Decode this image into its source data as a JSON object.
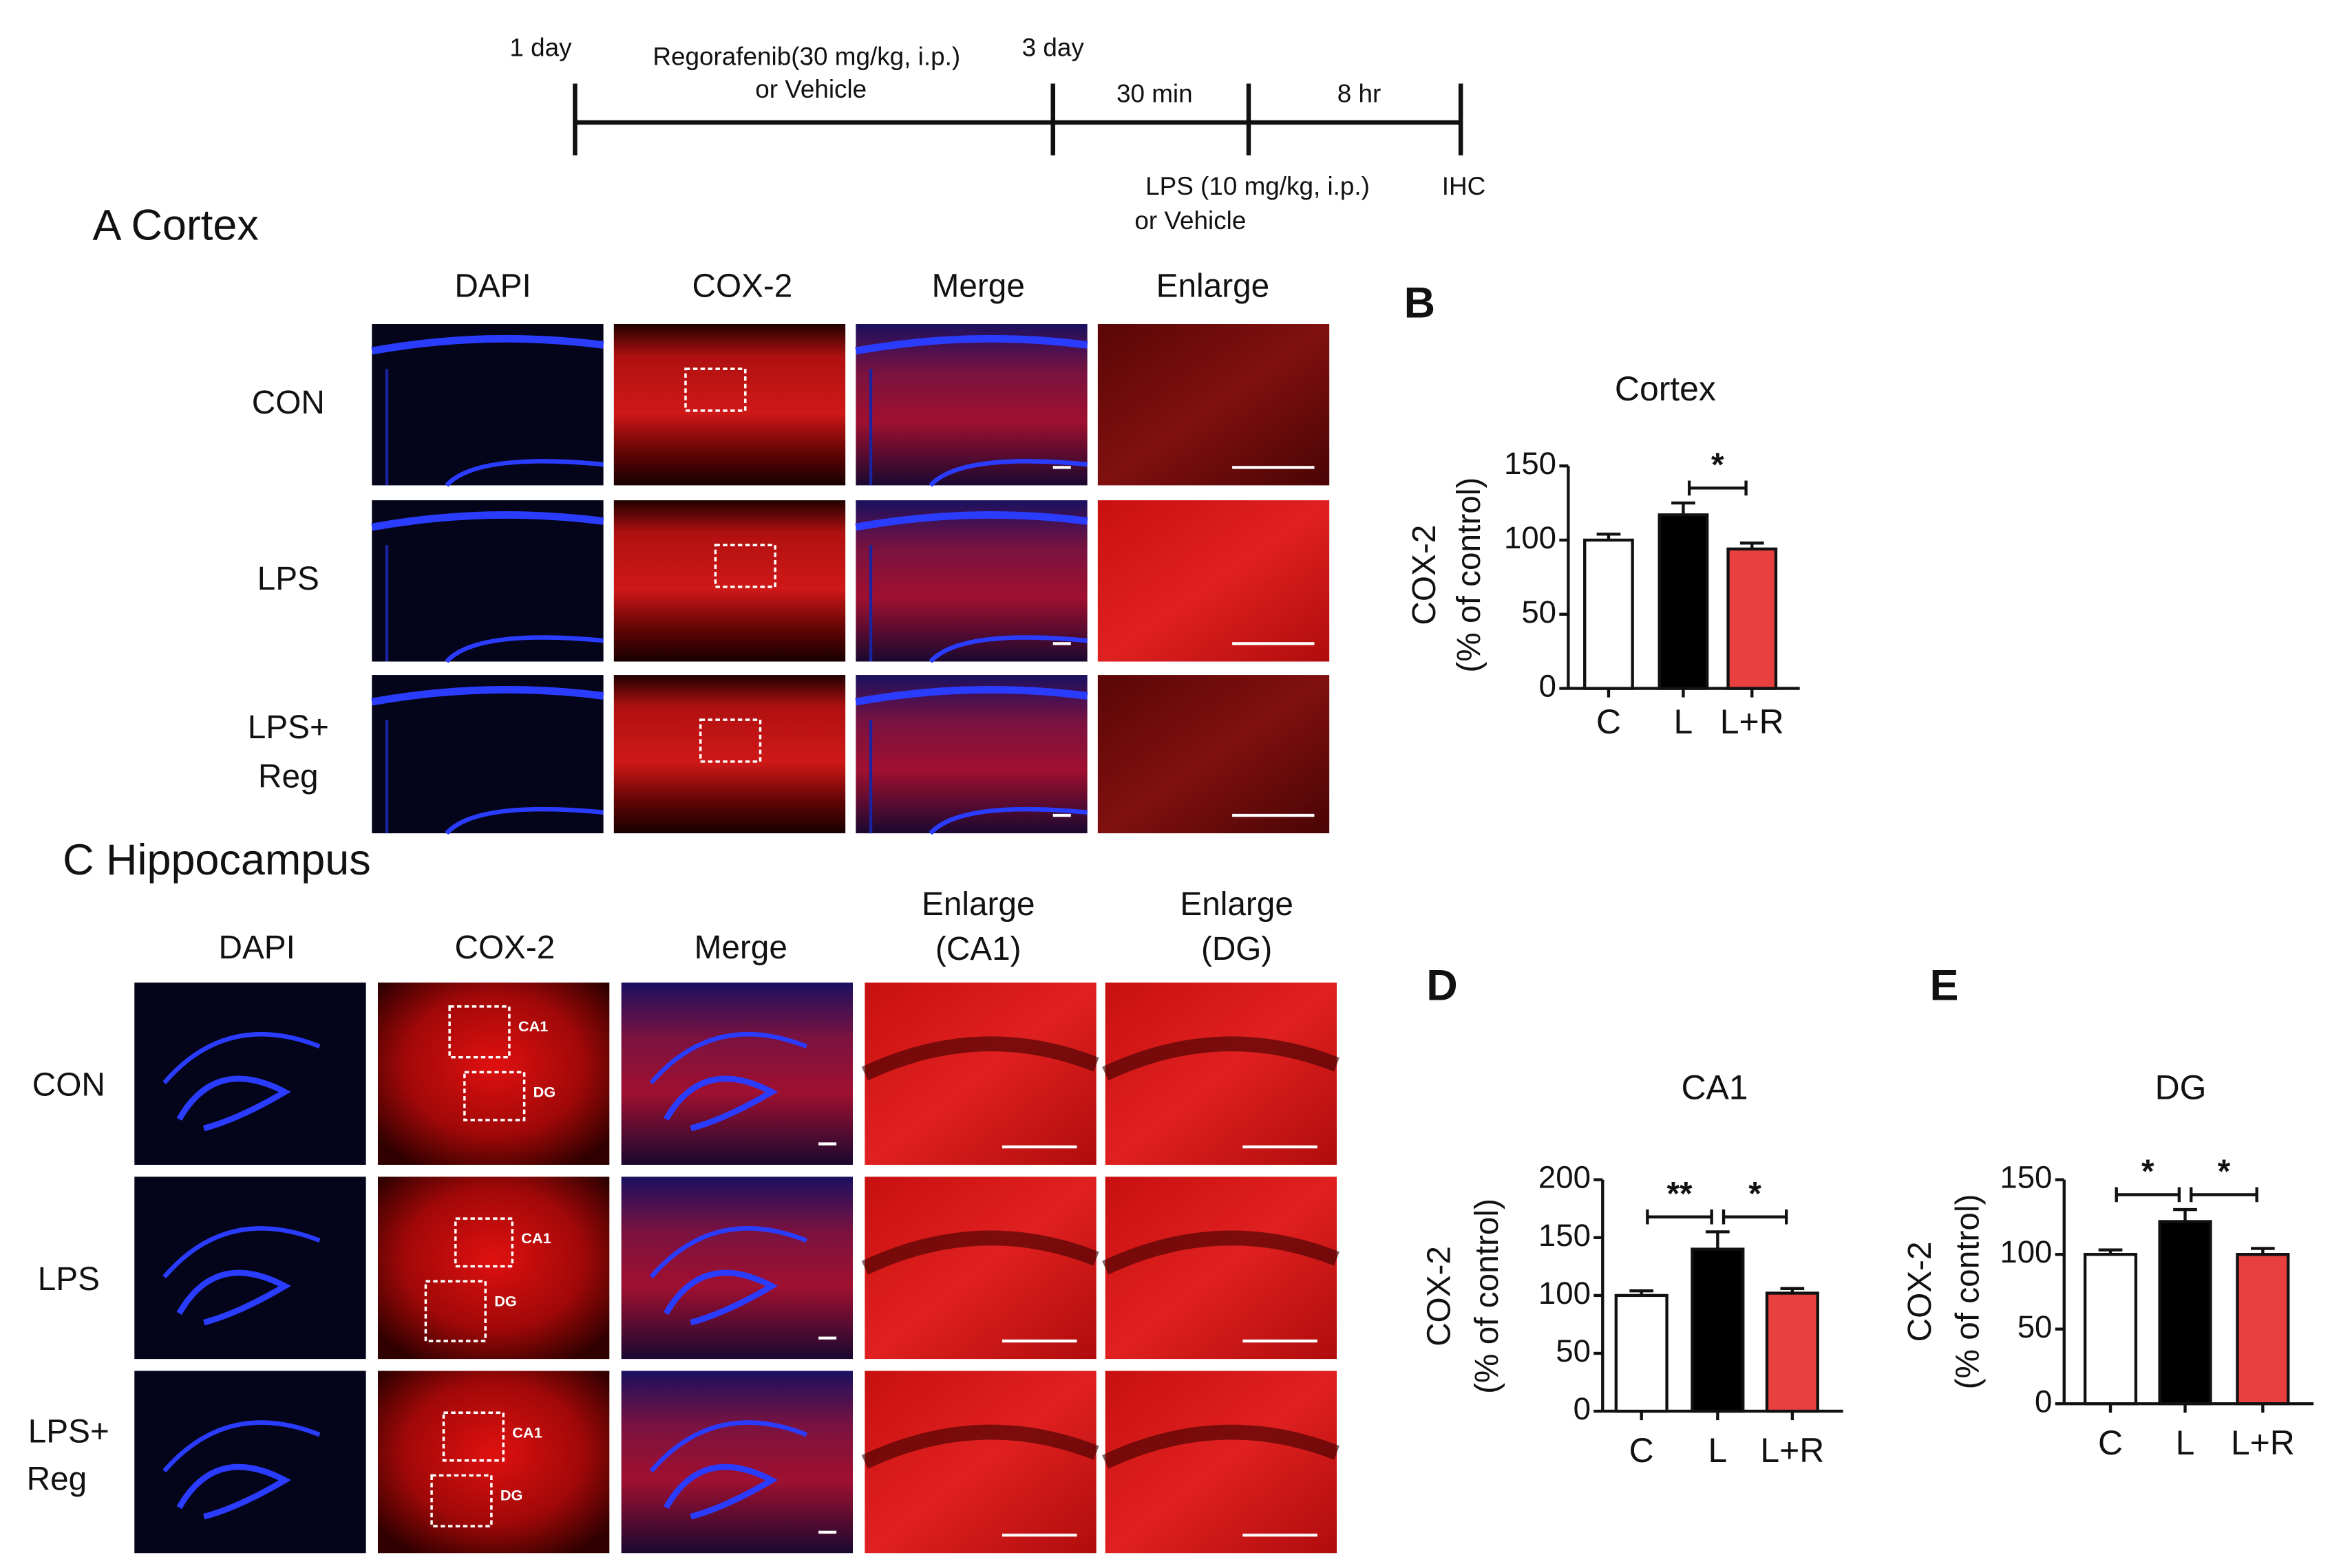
{
  "timeline": {
    "labels": [
      "1 day",
      "Regorafenib(30 mg/kg, i.p.)",
      "or Vehicle",
      "3 day",
      "30 min",
      "8 hr",
      "LPS (10 mg/kg, i.p.)",
      "or Vehicle",
      "IHC"
    ]
  },
  "panel_a": {
    "title": "A Cortex",
    "columns": [
      "DAPI",
      "COX-2",
      "Merge",
      "Enlarge"
    ],
    "rows": [
      [
        "CON"
      ],
      [
        "LPS"
      ],
      [
        "LPS+",
        "Reg"
      ]
    ]
  },
  "panel_c": {
    "title": "C Hippocampus",
    "columns": [
      [
        "DAPI"
      ],
      [
        "COX-2"
      ],
      [
        "Merge"
      ],
      [
        "Enlarge",
        "(CA1)"
      ],
      [
        "Enlarge",
        "(DG)"
      ]
    ],
    "rows": [
      [
        "CON"
      ],
      [
        "LPS"
      ],
      [
        "LPS+",
        "Reg"
      ]
    ],
    "region_labels": [
      "CA1",
      "DG"
    ]
  },
  "chart_data": [
    {
      "type": "bar",
      "panel": "B",
      "title": "Cortex",
      "ylabel": [
        "COX-2",
        "(% of control)"
      ],
      "categories": [
        "C",
        "L",
        "L+R"
      ],
      "values": [
        100,
        117,
        94
      ],
      "errors": [
        4,
        8,
        4
      ],
      "colors": [
        "#ffffff",
        "#000000",
        "#e8403f"
      ],
      "ylim": [
        0,
        150
      ],
      "yticks": [
        0,
        50,
        100,
        150
      ],
      "significance": [
        {
          "label": "*",
          "between": [
            "L",
            "L+R"
          ]
        }
      ]
    },
    {
      "type": "bar",
      "panel": "D",
      "title": "CA1",
      "ylabel": [
        "COX-2",
        "(% of control)"
      ],
      "categories": [
        "C",
        "L",
        "L+R"
      ],
      "values": [
        100,
        140,
        102
      ],
      "errors": [
        4,
        15,
        4
      ],
      "colors": [
        "#ffffff",
        "#000000",
        "#e8403f"
      ],
      "ylim": [
        0,
        200
      ],
      "yticks": [
        0,
        50,
        100,
        150,
        200
      ],
      "significance": [
        {
          "label": "**",
          "between": [
            "C",
            "L"
          ]
        },
        {
          "label": "*",
          "between": [
            "L",
            "L+R"
          ]
        }
      ]
    },
    {
      "type": "bar",
      "panel": "E",
      "title": "DG",
      "ylabel": [
        "COX-2",
        "(% of control)"
      ],
      "categories": [
        "C",
        "L",
        "L+R"
      ],
      "values": [
        100,
        122,
        100
      ],
      "errors": [
        3,
        8,
        4
      ],
      "colors": [
        "#ffffff",
        "#000000",
        "#e8403f"
      ],
      "ylim": [
        0,
        150
      ],
      "yticks": [
        0,
        50,
        100,
        150
      ],
      "significance": [
        {
          "label": "*",
          "between": [
            "C",
            "L"
          ]
        },
        {
          "label": "*",
          "between": [
            "L",
            "L+R"
          ]
        }
      ]
    }
  ]
}
